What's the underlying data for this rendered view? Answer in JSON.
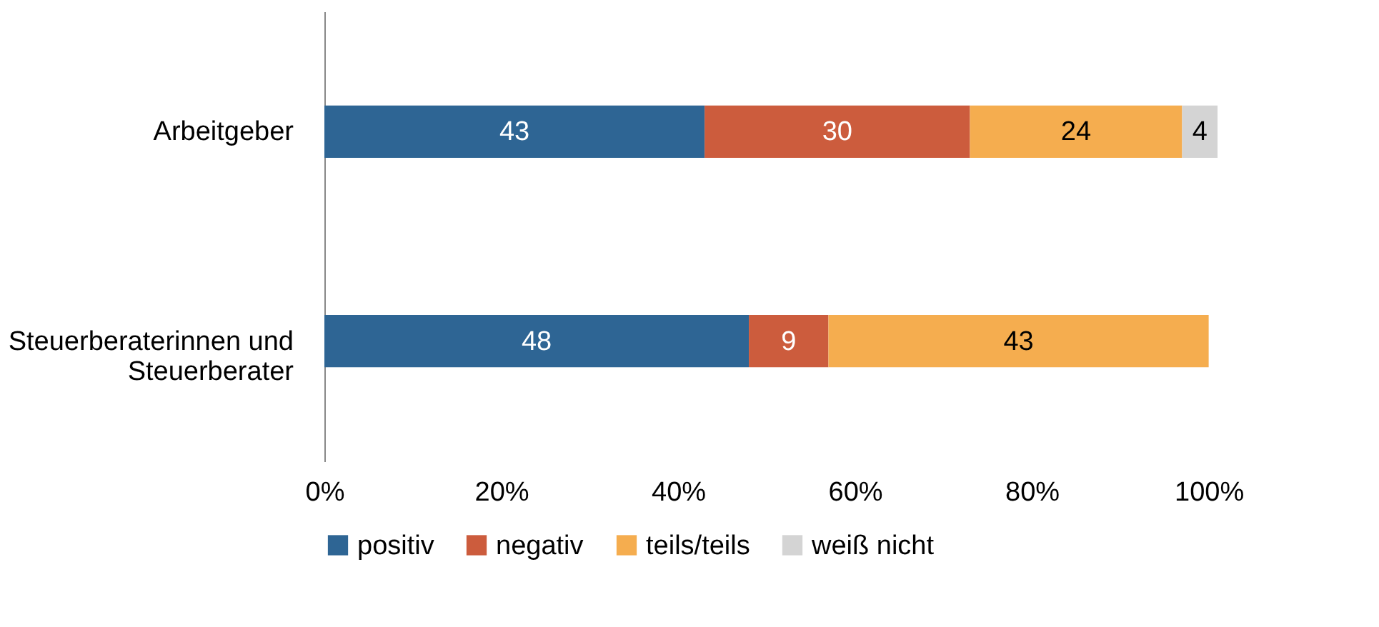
{
  "chart_data": {
    "type": "bar",
    "orientation": "horizontal",
    "stacked": true,
    "categories": [
      "Arbeitgeber",
      "Steuerberaterinnen und Steuerberater"
    ],
    "series": [
      {
        "name": "positiv",
        "color": "#2e6594",
        "values": [
          43,
          48
        ]
      },
      {
        "name": "negativ",
        "color": "#cc5c3d",
        "values": [
          30,
          9
        ]
      },
      {
        "name": "teils/teils",
        "color": "#f5ad4f",
        "values": [
          24,
          43
        ]
      },
      {
        "name": "weiß nicht",
        "color": "#d4d4d4",
        "values": [
          4,
          null
        ]
      }
    ],
    "xlim": [
      0,
      101
    ],
    "xticks": [
      {
        "value": 0,
        "label": "0%"
      },
      {
        "value": 20,
        "label": "20%"
      },
      {
        "value": 40,
        "label": "40%"
      },
      {
        "value": 60,
        "label": "60%"
      },
      {
        "value": 80,
        "label": "80%"
      },
      {
        "value": 100,
        "label": "100%"
      }
    ],
    "data_labels": true,
    "grid": false,
    "legend": "bottom"
  }
}
